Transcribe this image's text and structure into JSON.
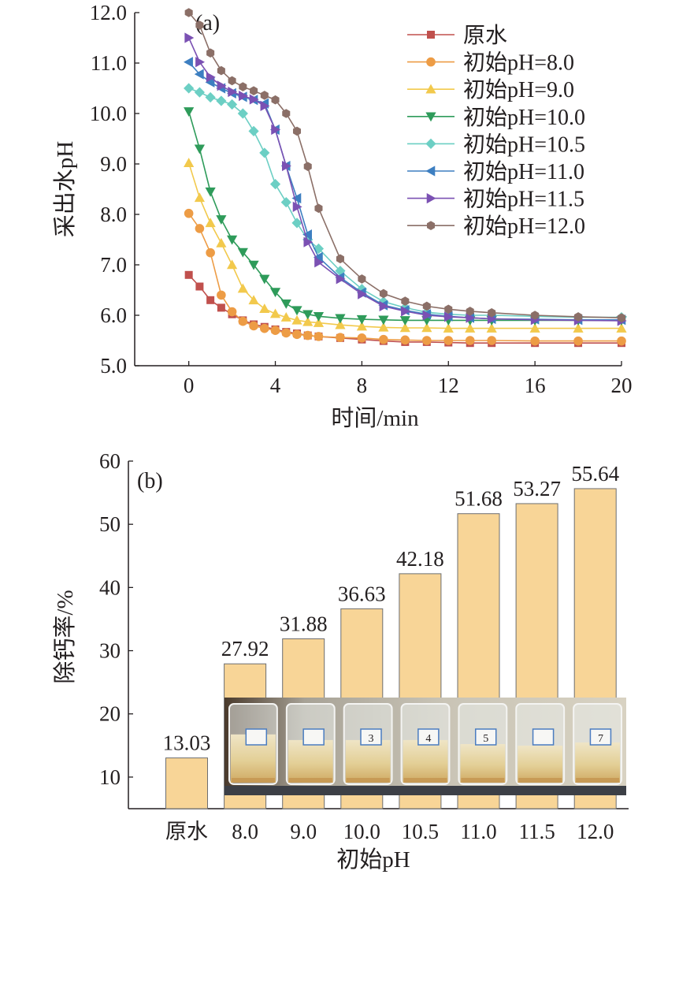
{
  "chart_data": [
    {
      "type": "line",
      "panel_label": "(a)",
      "xlabel": "时间/min",
      "ylabel": "采出水pH",
      "xlim": [
        -2.5,
        20
      ],
      "ylim": [
        5.0,
        12.0
      ],
      "xticks": [
        "0",
        "4",
        "8",
        "12",
        "16",
        "20"
      ],
      "yticks": [
        "5.0",
        "6.0",
        "7.0",
        "8.0",
        "9.0",
        "10.0",
        "11.0",
        "12.0"
      ],
      "legend": "top-right",
      "grid": false,
      "series": [
        {
          "name": "原水",
          "color": "#c0504d",
          "marker": "square",
          "x": [
            0,
            0.5,
            1,
            1.5,
            2,
            2.5,
            3,
            3.5,
            4,
            4.5,
            5,
            5.5,
            6,
            7,
            8,
            9,
            10,
            11,
            12,
            13,
            14,
            16,
            18,
            20
          ],
          "y": [
            6.8,
            6.57,
            6.3,
            6.15,
            6.02,
            5.9,
            5.82,
            5.77,
            5.72,
            5.67,
            5.64,
            5.6,
            5.58,
            5.55,
            5.52,
            5.49,
            5.47,
            5.47,
            5.46,
            5.45,
            5.45,
            5.45,
            5.45,
            5.45
          ]
        },
        {
          "name": "初始pH=8.0",
          "color": "#ed9c45",
          "marker": "circle",
          "x": [
            0,
            0.5,
            1,
            1.5,
            2,
            2.5,
            3,
            3.5,
            4,
            4.5,
            5,
            5.5,
            6,
            7,
            8,
            9,
            10,
            11,
            12,
            13,
            14,
            16,
            18,
            20
          ],
          "y": [
            8.02,
            7.72,
            7.24,
            6.4,
            6.07,
            5.88,
            5.79,
            5.74,
            5.7,
            5.65,
            5.62,
            5.6,
            5.58,
            5.56,
            5.55,
            5.52,
            5.51,
            5.5,
            5.5,
            5.5,
            5.5,
            5.49,
            5.49,
            5.49
          ]
        },
        {
          "name": "初始pH=9.0",
          "color": "#f2c94c",
          "marker": "triangle-up",
          "x": [
            0,
            0.5,
            1,
            1.5,
            2,
            2.5,
            3,
            3.5,
            4,
            4.5,
            5,
            5.5,
            6,
            7,
            8,
            9,
            10,
            11,
            12,
            13,
            14,
            16,
            18,
            20
          ],
          "y": [
            9.02,
            8.33,
            7.83,
            7.43,
            7.0,
            6.53,
            6.3,
            6.13,
            6.03,
            5.96,
            5.9,
            5.87,
            5.85,
            5.81,
            5.78,
            5.76,
            5.75,
            5.75,
            5.74,
            5.74,
            5.74,
            5.74,
            5.74,
            5.74
          ]
        },
        {
          "name": "初始pH=10.0",
          "color": "#2e9b5a",
          "marker": "triangle-down",
          "x": [
            0,
            0.5,
            1,
            1.5,
            2,
            2.5,
            3,
            3.5,
            4,
            4.5,
            5,
            5.5,
            6,
            7,
            8,
            9,
            10,
            11,
            12,
            13,
            14,
            16,
            18,
            20
          ],
          "y": [
            10.04,
            9.3,
            8.45,
            7.9,
            7.5,
            7.25,
            7.0,
            6.72,
            6.46,
            6.23,
            6.1,
            6.02,
            5.98,
            5.94,
            5.92,
            5.91,
            5.9,
            5.9,
            5.9,
            5.9,
            5.9,
            5.9,
            5.9,
            5.9
          ]
        },
        {
          "name": "初始pH=10.5",
          "color": "#6ccfc4",
          "marker": "diamond",
          "x": [
            0,
            0.5,
            1,
            1.5,
            2,
            2.5,
            3,
            3.5,
            4,
            4.5,
            5,
            5.5,
            6,
            7,
            8,
            9,
            10,
            11,
            12,
            13,
            14,
            16,
            18,
            20
          ],
          "y": [
            10.5,
            10.42,
            10.32,
            10.25,
            10.18,
            10.0,
            9.65,
            9.22,
            8.6,
            8.24,
            7.83,
            7.5,
            7.32,
            6.88,
            6.52,
            6.27,
            6.15,
            6.06,
            6.02,
            6.0,
            6.0,
            5.98,
            5.96,
            5.96
          ]
        },
        {
          "name": "初始pH=11.0",
          "color": "#3d7fc1",
          "marker": "triangle-left",
          "x": [
            0,
            0.5,
            1,
            1.5,
            2,
            2.5,
            3,
            3.5,
            4,
            4.5,
            5,
            5.5,
            6,
            7,
            8,
            9,
            10,
            11,
            12,
            13,
            14,
            16,
            18,
            20
          ],
          "y": [
            11.02,
            10.78,
            10.62,
            10.5,
            10.4,
            10.33,
            10.27,
            10.2,
            9.68,
            8.96,
            8.32,
            7.6,
            7.15,
            6.75,
            6.45,
            6.2,
            6.1,
            6.02,
            5.98,
            5.95,
            5.93,
            5.92,
            5.91,
            5.91
          ]
        },
        {
          "name": "初始pH=11.5",
          "color": "#7b51b3",
          "marker": "triangle-right",
          "x": [
            0,
            0.5,
            1,
            1.5,
            2,
            2.5,
            3,
            3.5,
            4,
            4.5,
            5,
            5.5,
            6,
            7,
            8,
            9,
            10,
            11,
            12,
            13,
            14,
            16,
            18,
            20
          ],
          "y": [
            11.5,
            11.02,
            10.72,
            10.55,
            10.43,
            10.35,
            10.28,
            10.15,
            9.68,
            8.96,
            8.15,
            7.45,
            7.05,
            6.72,
            6.42,
            6.18,
            6.08,
            6.0,
            5.97,
            5.95,
            5.93,
            5.91,
            5.9,
            5.89
          ]
        },
        {
          "name": "初始pH=12.0",
          "color": "#8b6f67",
          "marker": "hexagon",
          "x": [
            0,
            0.5,
            1,
            1.5,
            2,
            2.5,
            3,
            3.5,
            4,
            4.5,
            5,
            5.5,
            6,
            7,
            8,
            9,
            10,
            11,
            12,
            13,
            14,
            16,
            18,
            20
          ],
          "y": [
            12.0,
            11.75,
            11.2,
            10.85,
            10.65,
            10.53,
            10.45,
            10.36,
            10.27,
            10.0,
            9.65,
            8.95,
            8.12,
            7.12,
            6.72,
            6.43,
            6.28,
            6.18,
            6.12,
            6.08,
            6.05,
            6.0,
            5.97,
            5.95
          ]
        }
      ]
    },
    {
      "type": "bar",
      "panel_label": "(b)",
      "xlabel": "初始pH",
      "ylabel": "除钙率/%",
      "ylim": [
        5,
        60
      ],
      "yticks": [
        "10",
        "20",
        "30",
        "40",
        "50",
        "60"
      ],
      "categories": [
        "原水",
        "8.0",
        "9.0",
        "10.0",
        "10.5",
        "11.0",
        "11.5",
        "12.0"
      ],
      "values": [
        13.03,
        27.92,
        31.88,
        36.63,
        42.18,
        51.68,
        53.27,
        55.64
      ],
      "labels": [
        "13.03",
        "27.92",
        "31.88",
        "36.63",
        "42.18",
        "51.68",
        "53.27",
        "55.64"
      ],
      "bar_color": "#f8d597",
      "inset_photo": {
        "beaker_labels": [
          "",
          "",
          "3",
          "4",
          "5",
          "",
          "7"
        ]
      }
    }
  ]
}
